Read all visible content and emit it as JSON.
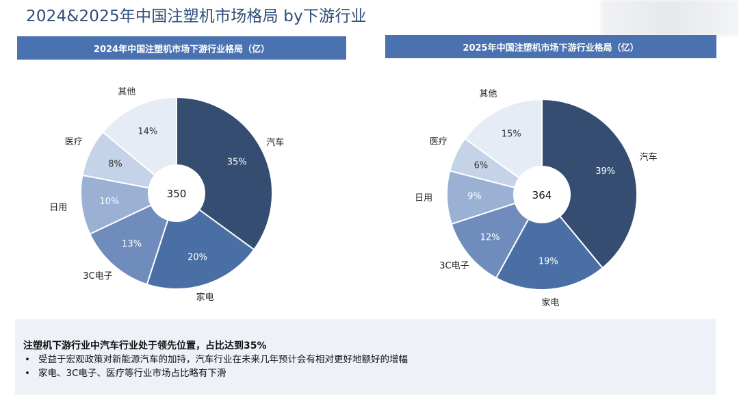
{
  "page_title": "2024&2025年中国注塑机市场格局 by下游行业",
  "colors": {
    "header_bg": "#4a72b0",
    "slices": [
      "#344d70",
      "#4a6fa5",
      "#6f8cbd",
      "#9bb1d4",
      "#c5d3e8",
      "#e6ecf5"
    ]
  },
  "chart_data": [
    {
      "type": "pie",
      "title": "2024年中国注塑机市场下游行业格局（亿）",
      "center_label": "350",
      "categories": [
        "汽车",
        "家电",
        "3C电子",
        "日用",
        "医疗",
        "其他"
      ],
      "values": [
        35,
        20,
        13,
        10,
        8,
        14
      ],
      "value_labels": [
        "35%",
        "20%",
        "13%",
        "10%",
        "8%",
        "14%"
      ]
    },
    {
      "type": "pie",
      "title": "2025年中国注塑机市场下游行业格局（亿）",
      "center_label": "364",
      "categories": [
        "汽车",
        "家电",
        "3C电子",
        "日用",
        "医疗",
        "其他"
      ],
      "values": [
        39,
        19,
        12,
        9,
        6,
        15
      ],
      "value_labels": [
        "39%",
        "19%",
        "12%",
        "9%",
        "6%",
        "15%"
      ]
    }
  ],
  "summary": {
    "heading": "注塑机下游行业中汽车行业处于领先位置，占比达到35%",
    "bullets": [
      "受益于宏观政策对新能源汽车的加持，汽车行业在未来几年预计会有相对更好地额好的增幅",
      "家电、3C电子、医疗等行业市场占比略有下滑"
    ]
  }
}
